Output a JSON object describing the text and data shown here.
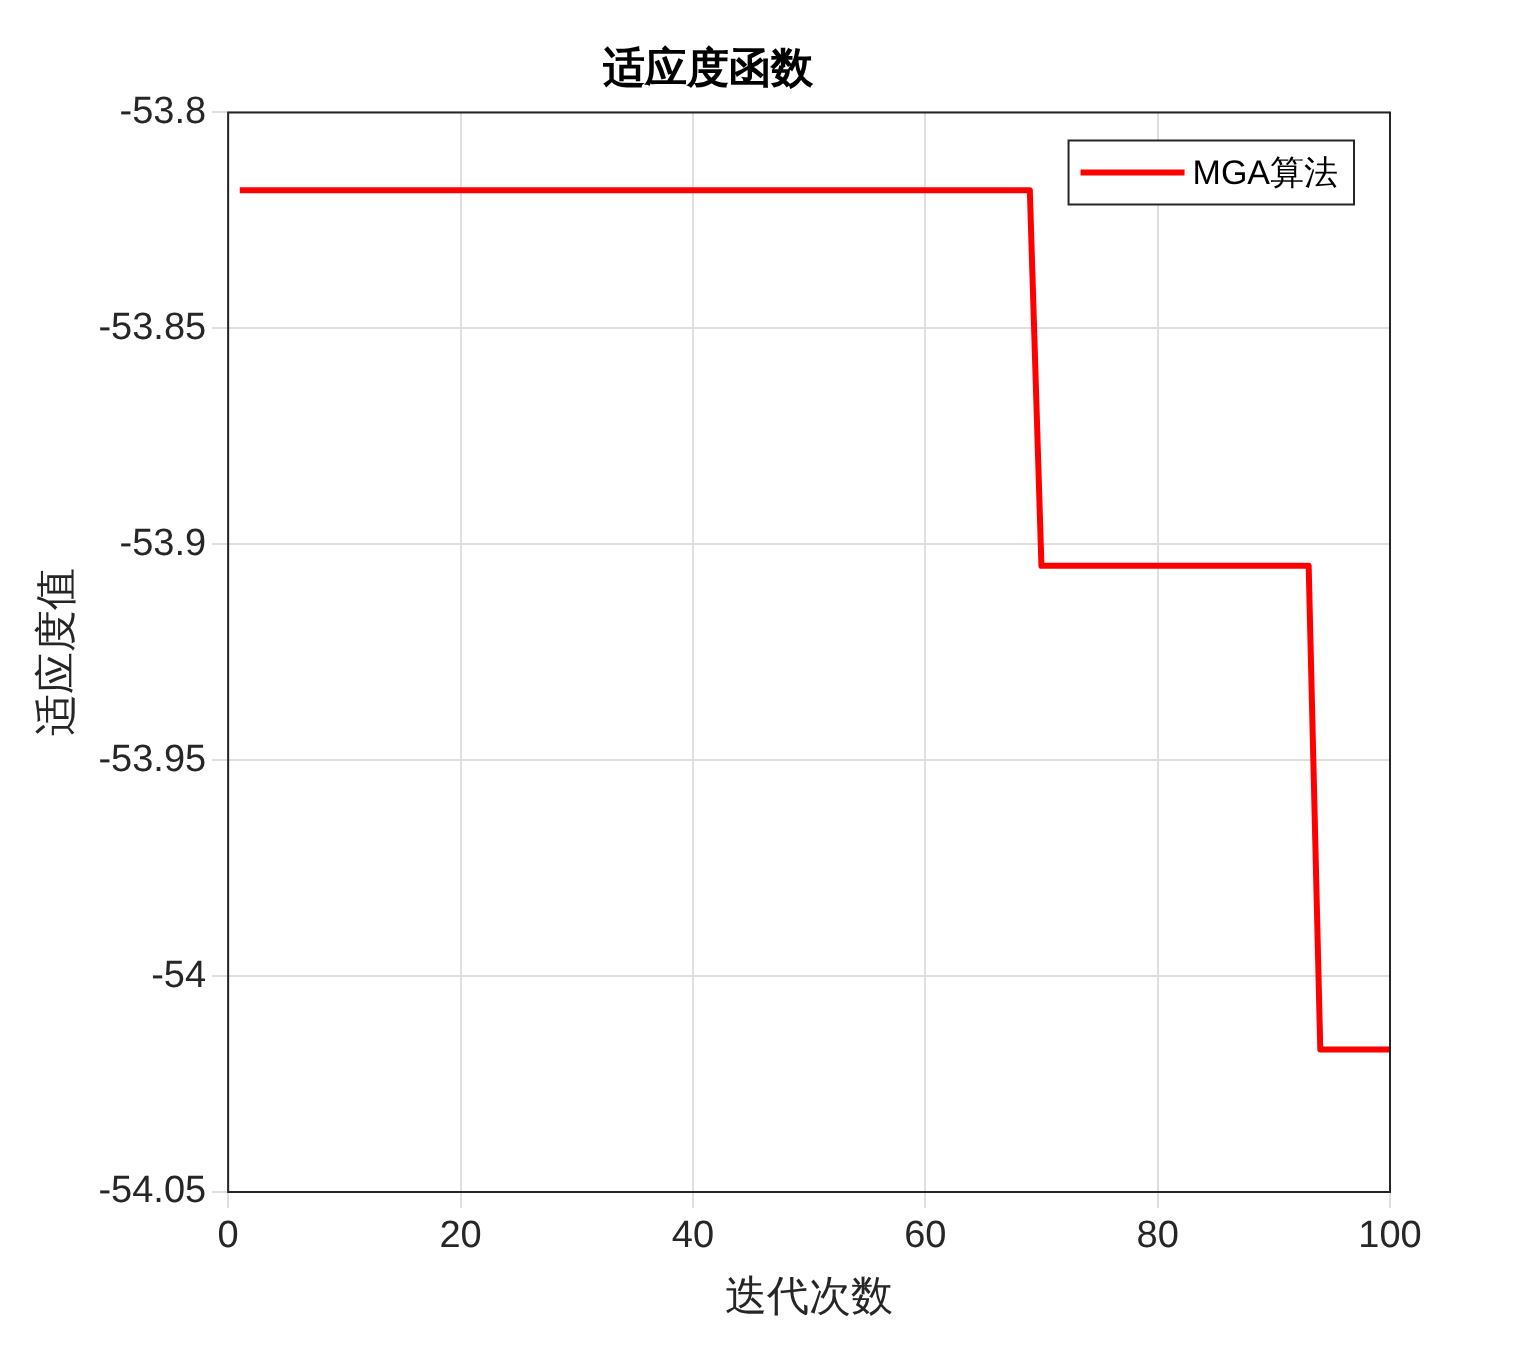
{
  "chart_data": {
    "type": "line",
    "title": "适应度函数",
    "xlabel": "迭代次数",
    "ylabel": "适应度值",
    "x": [
      1,
      69,
      70,
      93,
      94,
      100
    ],
    "series": [
      {
        "name": "MGA算法",
        "color": "#ff0000",
        "values": [
          -53.818,
          -53.818,
          -53.905,
          -53.905,
          -54.017,
          -54.017
        ]
      }
    ],
    "xlim": [
      0,
      100
    ],
    "xticks": [
      0,
      20,
      40,
      60,
      80,
      100
    ],
    "ylim": [
      -54.05,
      -53.8
    ],
    "yticks": [
      -54.05,
      -54,
      -53.95,
      -53.9,
      -53.85,
      -53.8
    ],
    "grid": true,
    "legend": "top right",
    "marker": "none",
    "line_style": "solid"
  }
}
